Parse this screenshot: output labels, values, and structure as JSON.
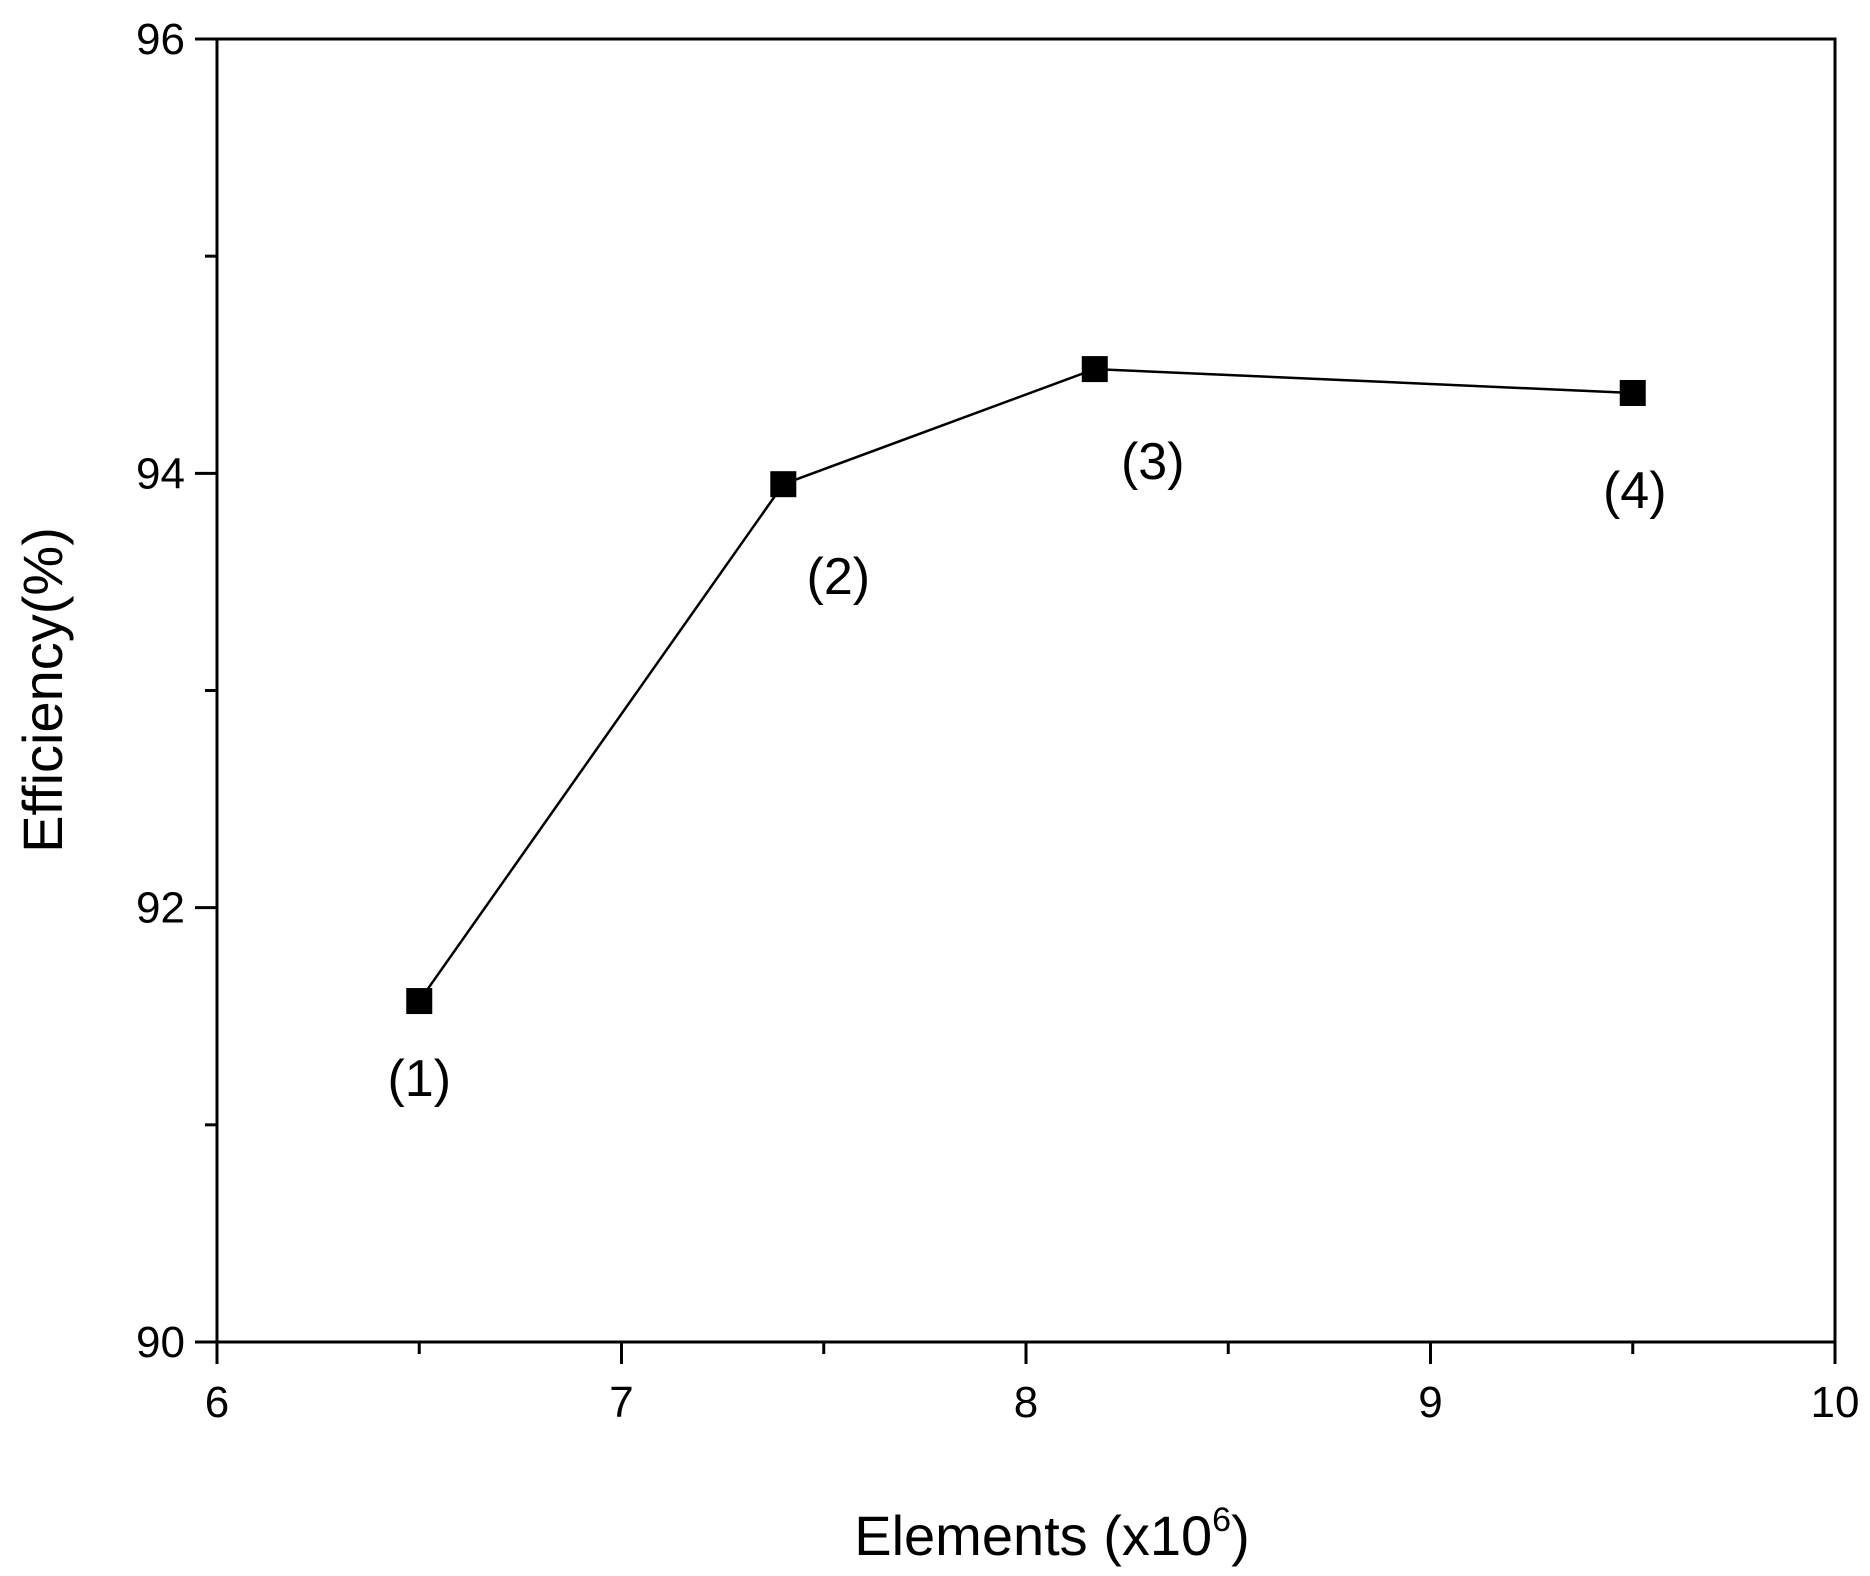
{
  "chart_data": {
    "type": "line",
    "xlabel": "Elements (x10",
    "xlabel_superscript": "6",
    "xlabel_close": ")",
    "ylabel": "Efficiency(%)",
    "xlim": [
      6,
      10
    ],
    "ylim": [
      90,
      96
    ],
    "x_ticks": [
      "6",
      "7",
      "8",
      "9",
      "10"
    ],
    "y_ticks": [
      "90",
      "92",
      "94",
      "96"
    ],
    "grid": false,
    "marker": "square",
    "line_color": "#000000",
    "points": [
      {
        "x": 6.5,
        "y": 91.57,
        "label": "(1)"
      },
      {
        "x": 7.4,
        "y": 93.95,
        "label": "(2)"
      },
      {
        "x": 8.17,
        "y": 94.48,
        "label": "(3)"
      },
      {
        "x": 9.5,
        "y": 94.37,
        "label": "(4)"
      }
    ]
  }
}
